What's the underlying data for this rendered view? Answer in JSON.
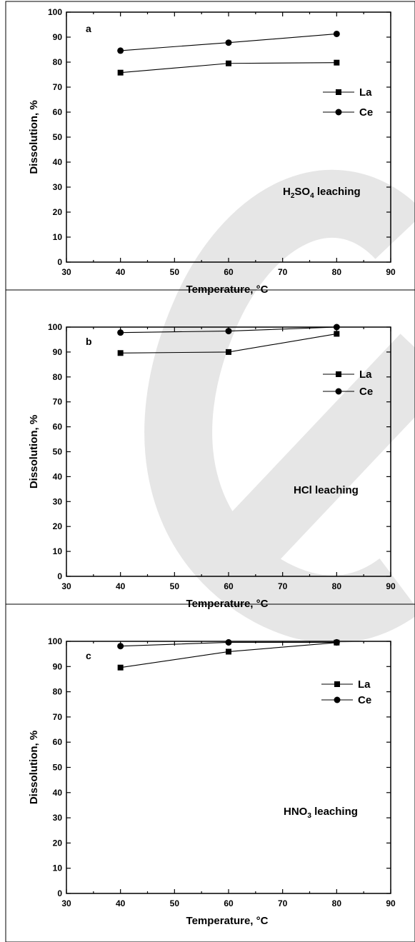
{
  "chart_data": [
    {
      "type": "line",
      "panel_letter": "a",
      "xlabel": "Temperature, °C",
      "ylabel": "Dissolution, %",
      "xlim": [
        30,
        90
      ],
      "ylim": [
        0,
        100
      ],
      "xticks": [
        30,
        40,
        50,
        60,
        70,
        80,
        90
      ],
      "yticks": [
        0,
        10,
        20,
        30,
        40,
        50,
        60,
        70,
        80,
        90,
        100
      ],
      "x": [
        40,
        60,
        80
      ],
      "series": [
        {
          "name": "La",
          "marker": "square",
          "values": [
            75.8,
            79.5,
            79.8
          ]
        },
        {
          "name": "Ce",
          "marker": "circle",
          "values": [
            84.6,
            87.8,
            91.3
          ]
        }
      ],
      "annotation": {
        "prefix": "H",
        "sub1": "2",
        "mid": "SO",
        "sub2": "4",
        "suffix": " leaching"
      },
      "legend_position": "upper-right"
    },
    {
      "type": "line",
      "panel_letter": "b",
      "xlabel": "Temperature, °C",
      "ylabel": "Dissolution, %",
      "xlim": [
        30,
        90
      ],
      "ylim": [
        0,
        100
      ],
      "xticks": [
        30,
        40,
        50,
        60,
        70,
        80,
        90
      ],
      "yticks": [
        0,
        10,
        20,
        30,
        40,
        50,
        60,
        70,
        80,
        90,
        100
      ],
      "x": [
        40,
        60,
        80
      ],
      "series": [
        {
          "name": "La",
          "marker": "square",
          "values": [
            89.6,
            90.0,
            97.3
          ]
        },
        {
          "name": "Ce",
          "marker": "circle",
          "values": [
            97.8,
            98.4,
            100.0
          ]
        }
      ],
      "annotation": {
        "prefix": "HCl leaching",
        "sub1": "",
        "mid": "",
        "sub2": "",
        "suffix": ""
      },
      "legend_position": "upper-right"
    },
    {
      "type": "line",
      "panel_letter": "c",
      "xlabel": "Temperature, °C",
      "ylabel": "Dissolution, %",
      "xlim": [
        30,
        90
      ],
      "ylim": [
        0,
        100
      ],
      "xticks": [
        30,
        40,
        50,
        60,
        70,
        80,
        90
      ],
      "yticks": [
        0,
        10,
        20,
        30,
        40,
        50,
        60,
        70,
        80,
        90,
        100
      ],
      "x": [
        40,
        60,
        80
      ],
      "series": [
        {
          "name": "La",
          "marker": "square",
          "values": [
            89.6,
            95.9,
            99.5
          ]
        },
        {
          "name": "Ce",
          "marker": "circle",
          "values": [
            98.1,
            99.6,
            99.6
          ]
        }
      ],
      "annotation": {
        "prefix": "HNO",
        "sub1": "3",
        "mid": " leaching",
        "sub2": "",
        "suffix": ""
      },
      "legend_position": "upper-right"
    }
  ]
}
